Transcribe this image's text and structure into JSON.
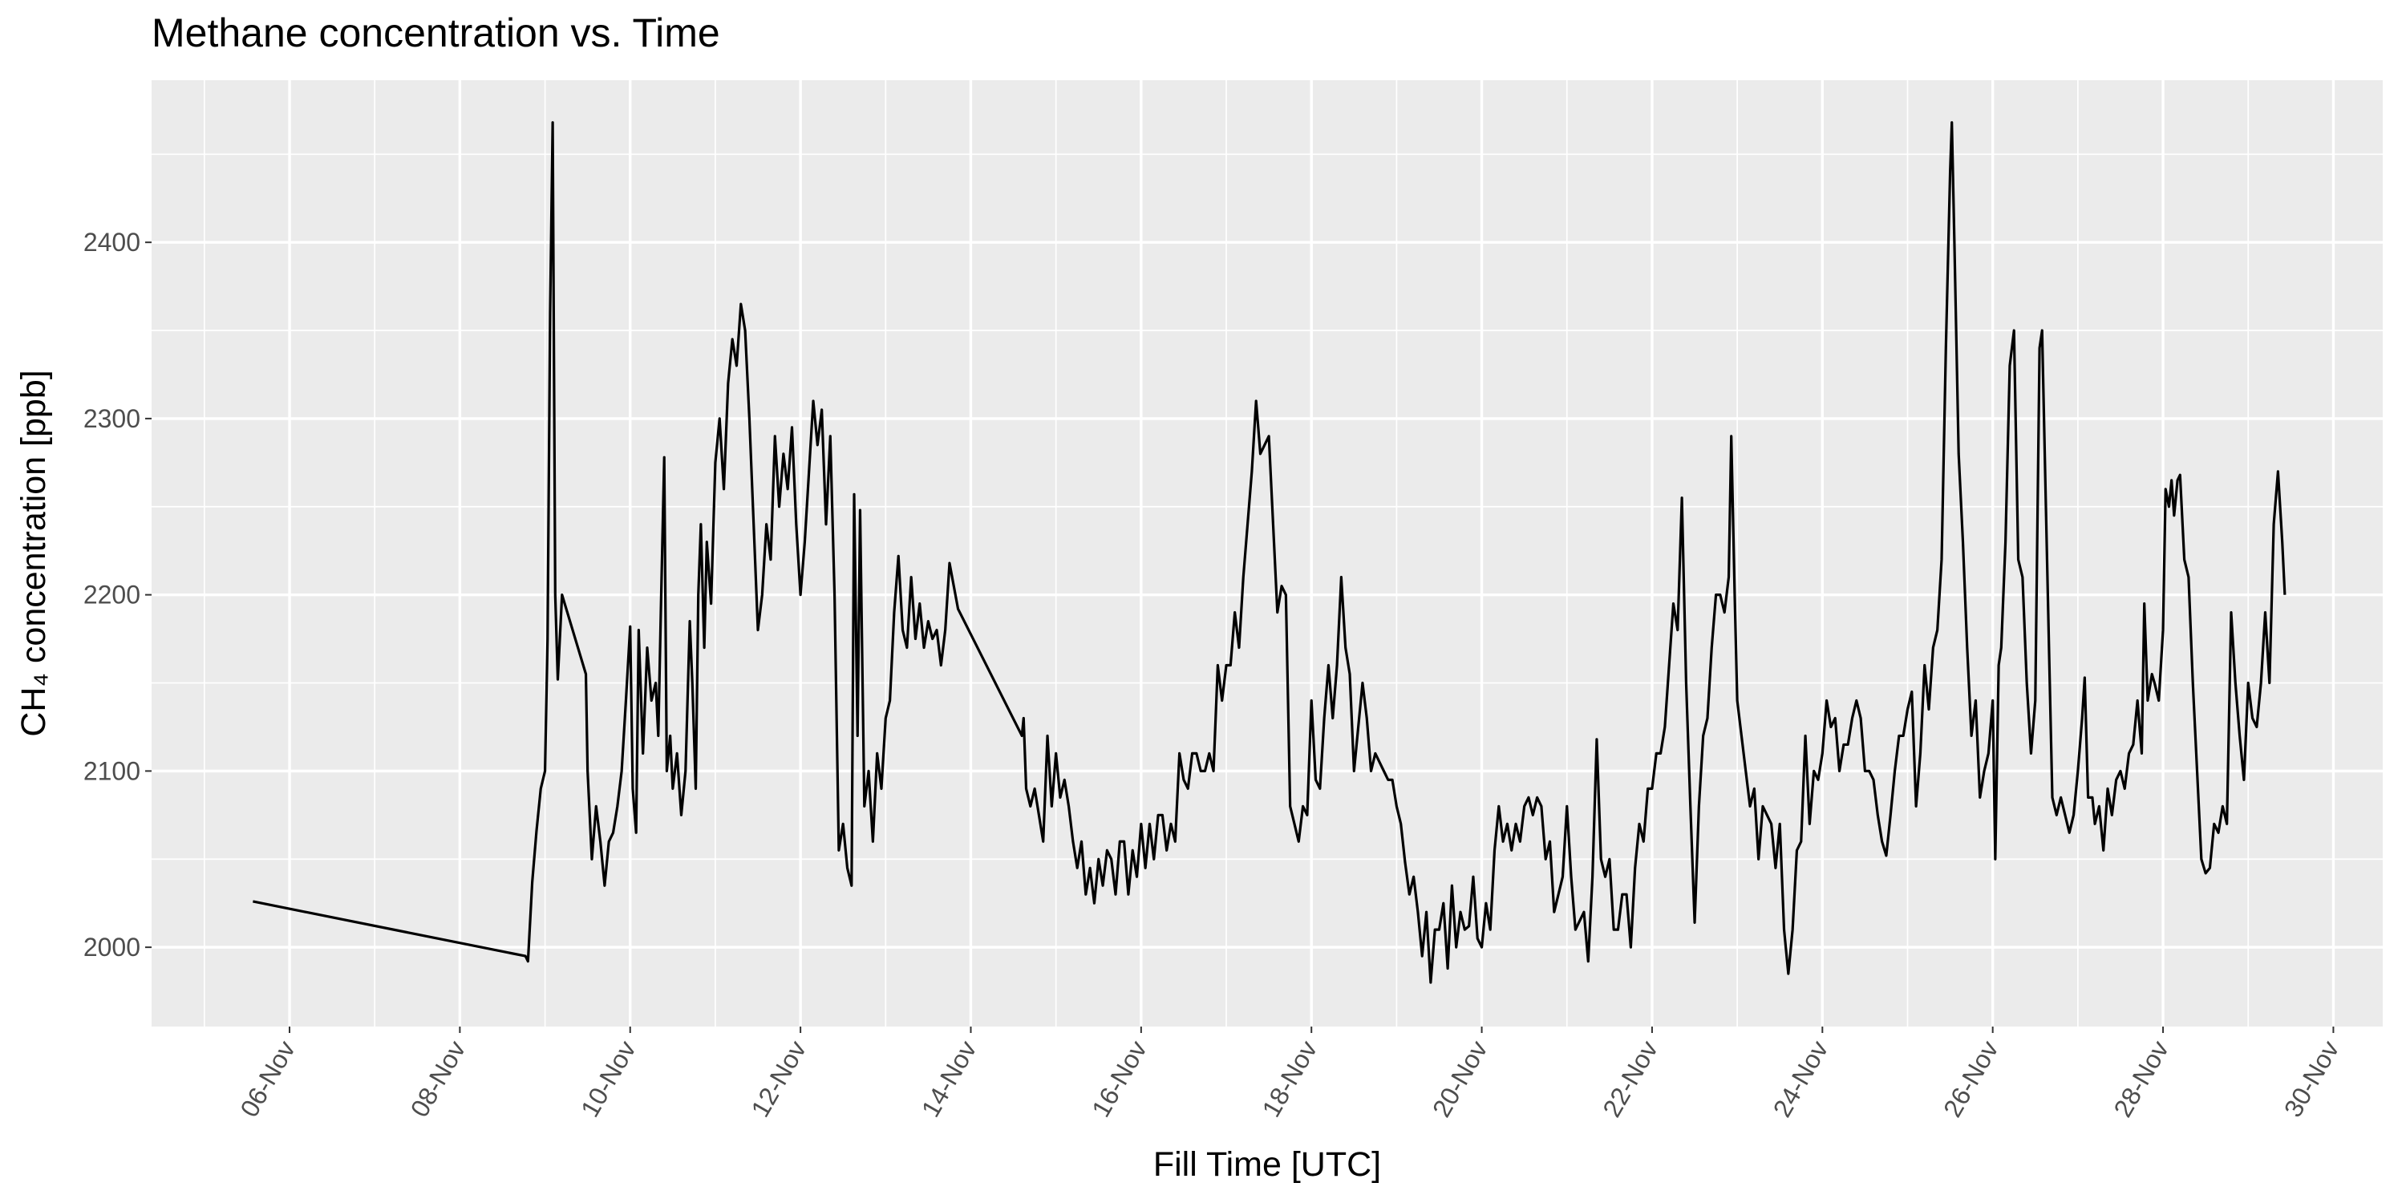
{
  "chart_data": {
    "type": "line",
    "title": "Methane concentration vs. Time",
    "x_label": "Fill Time [UTC]",
    "y_label": "CH₄ concentration [ppb]",
    "color": "#000000",
    "grid": true,
    "xlim": [
      4.38,
      30.58
    ],
    "ylim": [
      1955,
      2492
    ],
    "xticks": [
      {
        "value": 6,
        "label": "06-Nov"
      },
      {
        "value": 8,
        "label": "08-Nov"
      },
      {
        "value": 10,
        "label": "10-Nov"
      },
      {
        "value": 12,
        "label": "12-Nov"
      },
      {
        "value": 14,
        "label": "14-Nov"
      },
      {
        "value": 16,
        "label": "16-Nov"
      },
      {
        "value": 18,
        "label": "18-Nov"
      },
      {
        "value": 20,
        "label": "20-Nov"
      },
      {
        "value": 22,
        "label": "22-Nov"
      },
      {
        "value": 24,
        "label": "24-Nov"
      },
      {
        "value": 26,
        "label": "26-Nov"
      },
      {
        "value": 28,
        "label": "28-Nov"
      },
      {
        "value": 30,
        "label": "30-Nov"
      }
    ],
    "yticks": [
      2000,
      2100,
      2200,
      2300,
      2400
    ],
    "x": [
      5.57,
      8.77,
      8.8,
      8.85,
      8.9,
      8.95,
      9.0,
      9.03,
      9.06,
      9.09,
      9.12,
      9.15,
      9.2,
      9.48,
      9.5,
      9.55,
      9.6,
      9.65,
      9.7,
      9.75,
      9.8,
      9.85,
      9.9,
      9.95,
      10.0,
      10.03,
      10.07,
      10.1,
      10.15,
      10.2,
      10.25,
      10.3,
      10.33,
      10.36,
      10.4,
      10.43,
      10.47,
      10.5,
      10.55,
      10.6,
      10.65,
      10.7,
      10.73,
      10.77,
      10.8,
      10.83,
      10.87,
      10.9,
      10.95,
      11.0,
      11.05,
      11.1,
      11.15,
      11.2,
      11.25,
      11.3,
      11.35,
      11.4,
      11.45,
      11.5,
      11.55,
      11.6,
      11.65,
      11.7,
      11.75,
      11.8,
      11.85,
      11.9,
      11.95,
      12.0,
      12.05,
      12.1,
      12.15,
      12.2,
      12.25,
      12.3,
      12.35,
      12.4,
      12.45,
      12.5,
      12.55,
      12.6,
      12.63,
      12.67,
      12.7,
      12.75,
      12.8,
      12.85,
      12.9,
      12.95,
      13.0,
      13.05,
      13.1,
      13.15,
      13.2,
      13.25,
      13.3,
      13.35,
      13.4,
      13.45,
      13.5,
      13.55,
      13.6,
      13.65,
      13.7,
      13.75,
      13.8,
      13.85,
      14.6,
      14.62,
      14.65,
      14.7,
      14.75,
      14.8,
      14.85,
      14.9,
      14.95,
      15.0,
      15.05,
      15.1,
      15.15,
      15.2,
      15.25,
      15.3,
      15.35,
      15.4,
      15.45,
      15.5,
      15.55,
      15.6,
      15.65,
      15.7,
      15.75,
      15.8,
      15.85,
      15.9,
      15.95,
      16.0,
      16.05,
      16.1,
      16.15,
      16.2,
      16.25,
      16.3,
      16.35,
      16.4,
      16.45,
      16.5,
      16.55,
      16.6,
      16.65,
      16.7,
      16.75,
      16.8,
      16.85,
      16.9,
      16.95,
      17.0,
      17.05,
      17.1,
      17.15,
      17.2,
      17.25,
      17.3,
      17.35,
      17.4,
      17.45,
      17.5,
      17.55,
      17.6,
      17.65,
      17.7,
      17.75,
      17.8,
      17.85,
      17.9,
      17.95,
      18.0,
      18.05,
      18.1,
      18.15,
      18.2,
      18.25,
      18.3,
      18.35,
      18.4,
      18.45,
      18.5,
      18.55,
      18.6,
      18.65,
      18.7,
      18.75,
      18.8,
      18.85,
      18.9,
      18.95,
      19.0,
      19.05,
      19.1,
      19.15,
      19.2,
      19.25,
      19.3,
      19.35,
      19.4,
      19.45,
      19.5,
      19.55,
      19.6,
      19.65,
      19.7,
      19.75,
      19.8,
      19.85,
      19.9,
      19.95,
      20.0,
      20.05,
      20.1,
      20.15,
      20.2,
      20.25,
      20.3,
      20.35,
      20.4,
      20.45,
      20.5,
      20.55,
      20.6,
      20.65,
      20.7,
      20.75,
      20.8,
      20.85,
      20.9,
      20.95,
      21.0,
      21.05,
      21.1,
      21.15,
      21.2,
      21.25,
      21.3,
      21.35,
      21.4,
      21.45,
      21.5,
      21.55,
      21.6,
      21.65,
      21.7,
      21.75,
      21.8,
      21.85,
      21.9,
      21.95,
      22.0,
      22.05,
      22.1,
      22.15,
      22.2,
      22.25,
      22.3,
      22.35,
      22.4,
      22.45,
      22.5,
      22.55,
      22.6,
      22.65,
      22.7,
      22.75,
      22.8,
      22.85,
      22.9,
      22.93,
      22.97,
      23.0,
      23.05,
      23.1,
      23.15,
      23.2,
      23.25,
      23.3,
      23.35,
      23.4,
      23.45,
      23.5,
      23.55,
      23.6,
      23.65,
      23.7,
      23.75,
      23.8,
      23.85,
      23.9,
      23.95,
      24.0,
      24.05,
      24.1,
      24.15,
      24.2,
      24.25,
      24.3,
      24.35,
      24.4,
      24.45,
      24.5,
      24.55,
      24.6,
      24.65,
      24.7,
      24.75,
      24.8,
      24.85,
      24.9,
      24.95,
      25.0,
      25.05,
      25.1,
      25.15,
      25.2,
      25.25,
      25.3,
      25.35,
      25.4,
      25.45,
      25.5,
      25.52,
      25.55,
      25.6,
      25.65,
      25.7,
      25.75,
      25.8,
      25.85,
      25.9,
      25.95,
      26.0,
      26.03,
      26.07,
      26.1,
      26.15,
      26.2,
      26.25,
      26.3,
      26.35,
      26.4,
      26.45,
      26.5,
      26.55,
      26.58,
      26.62,
      26.67,
      26.7,
      26.75,
      26.8,
      26.85,
      26.9,
      26.95,
      27.0,
      27.05,
      27.08,
      27.12,
      27.17,
      27.2,
      27.25,
      27.3,
      27.35,
      27.4,
      27.45,
      27.5,
      27.55,
      27.6,
      27.65,
      27.7,
      27.75,
      27.78,
      27.82,
      27.87,
      27.9,
      27.95,
      28.0,
      28.03,
      28.07,
      28.1,
      28.13,
      28.17,
      28.2,
      28.25,
      28.3,
      28.35,
      28.4,
      28.45,
      28.5,
      28.55,
      28.6,
      28.65,
      28.7,
      28.75,
      28.8,
      28.85,
      28.9,
      28.95,
      29.0,
      29.05,
      29.1,
      29.15,
      29.2,
      29.25,
      29.3,
      29.35,
      29.4,
      29.43
    ],
    "values": [
      2026,
      1995,
      1992,
      2037,
      2066,
      2090,
      2100,
      2175,
      2360,
      2468,
      2200,
      2152,
      2200,
      2155,
      2100,
      2050,
      2080,
      2060,
      2035,
      2060,
      2065,
      2080,
      2100,
      2140,
      2182,
      2090,
      2065,
      2180,
      2110,
      2170,
      2140,
      2150,
      2120,
      2190,
      2278,
      2100,
      2120,
      2090,
      2110,
      2075,
      2100,
      2185,
      2150,
      2090,
      2200,
      2240,
      2170,
      2230,
      2195,
      2275,
      2300,
      2260,
      2320,
      2345,
      2330,
      2365,
      2350,
      2300,
      2240,
      2180,
      2200,
      2240,
      2220,
      2290,
      2250,
      2280,
      2260,
      2295,
      2240,
      2200,
      2230,
      2270,
      2310,
      2285,
      2305,
      2240,
      2290,
      2200,
      2055,
      2070,
      2045,
      2035,
      2257,
      2120,
      2248,
      2080,
      2100,
      2060,
      2110,
      2090,
      2130,
      2140,
      2190,
      2222,
      2180,
      2170,
      2210,
      2175,
      2195,
      2170,
      2185,
      2175,
      2180,
      2160,
      2180,
      2218,
      2205,
      2192,
      2120,
      2130,
      2090,
      2080,
      2090,
      2075,
      2060,
      2120,
      2080,
      2110,
      2085,
      2095,
      2080,
      2060,
      2045,
      2060,
      2030,
      2045,
      2025,
      2050,
      2035,
      2055,
      2050,
      2030,
      2060,
      2060,
      2030,
      2055,
      2040,
      2070,
      2045,
      2070,
      2050,
      2075,
      2075,
      2055,
      2070,
      2060,
      2110,
      2095,
      2090,
      2110,
      2110,
      2100,
      2100,
      2110,
      2100,
      2160,
      2140,
      2160,
      2160,
      2190,
      2170,
      2210,
      2240,
      2270,
      2310,
      2280,
      2285,
      2290,
      2240,
      2190,
      2205,
      2200,
      2080,
      2070,
      2060,
      2080,
      2075,
      2140,
      2095,
      2090,
      2130,
      2160,
      2130,
      2160,
      2210,
      2170,
      2155,
      2100,
      2125,
      2150,
      2130,
      2100,
      2110,
      2105,
      2100,
      2095,
      2095,
      2080,
      2070,
      2048,
      2030,
      2040,
      2020,
      1995,
      2020,
      1980,
      2010,
      2010,
      2025,
      1988,
      2035,
      2000,
      2020,
      2010,
      2012,
      2040,
      2005,
      2000,
      2025,
      2010,
      2055,
      2080,
      2060,
      2070,
      2055,
      2070,
      2060,
      2080,
      2085,
      2075,
      2085,
      2080,
      2050,
      2060,
      2020,
      2030,
      2040,
      2080,
      2040,
      2010,
      2015,
      2020,
      1992,
      2040,
      2118,
      2050,
      2040,
      2050,
      2010,
      2010,
      2030,
      2030,
      2000,
      2045,
      2070,
      2060,
      2090,
      2090,
      2110,
      2110,
      2125,
      2160,
      2195,
      2180,
      2255,
      2150,
      2080,
      2014,
      2080,
      2120,
      2130,
      2170,
      2200,
      2200,
      2190,
      2210,
      2290,
      2200,
      2140,
      2120,
      2100,
      2080,
      2090,
      2050,
      2080,
      2075,
      2070,
      2045,
      2070,
      2010,
      1985,
      2010,
      2055,
      2060,
      2120,
      2070,
      2100,
      2095,
      2110,
      2140,
      2125,
      2130,
      2100,
      2115,
      2115,
      2130,
      2140,
      2130,
      2100,
      2100,
      2095,
      2075,
      2060,
      2052,
      2075,
      2100,
      2120,
      2120,
      2135,
      2145,
      2080,
      2110,
      2160,
      2135,
      2170,
      2180,
      2220,
      2340,
      2440,
      2468,
      2400,
      2280,
      2230,
      2170,
      2120,
      2140,
      2085,
      2100,
      2110,
      2140,
      2050,
      2160,
      2170,
      2230,
      2330,
      2350,
      2220,
      2210,
      2150,
      2110,
      2140,
      2340,
      2350,
      2260,
      2150,
      2085,
      2075,
      2085,
      2075,
      2065,
      2075,
      2100,
      2130,
      2153,
      2085,
      2085,
      2070,
      2080,
      2055,
      2090,
      2075,
      2095,
      2100,
      2090,
      2110,
      2115,
      2140,
      2110,
      2195,
      2140,
      2155,
      2150,
      2140,
      2180,
      2260,
      2250,
      2265,
      2245,
      2265,
      2268,
      2220,
      2210,
      2150,
      2100,
      2050,
      2042,
      2045,
      2070,
      2065,
      2080,
      2070,
      2190,
      2150,
      2120,
      2095,
      2150,
      2130,
      2125,
      2150,
      2190,
      2150,
      2240,
      2270,
      2230,
      2200
    ]
  }
}
